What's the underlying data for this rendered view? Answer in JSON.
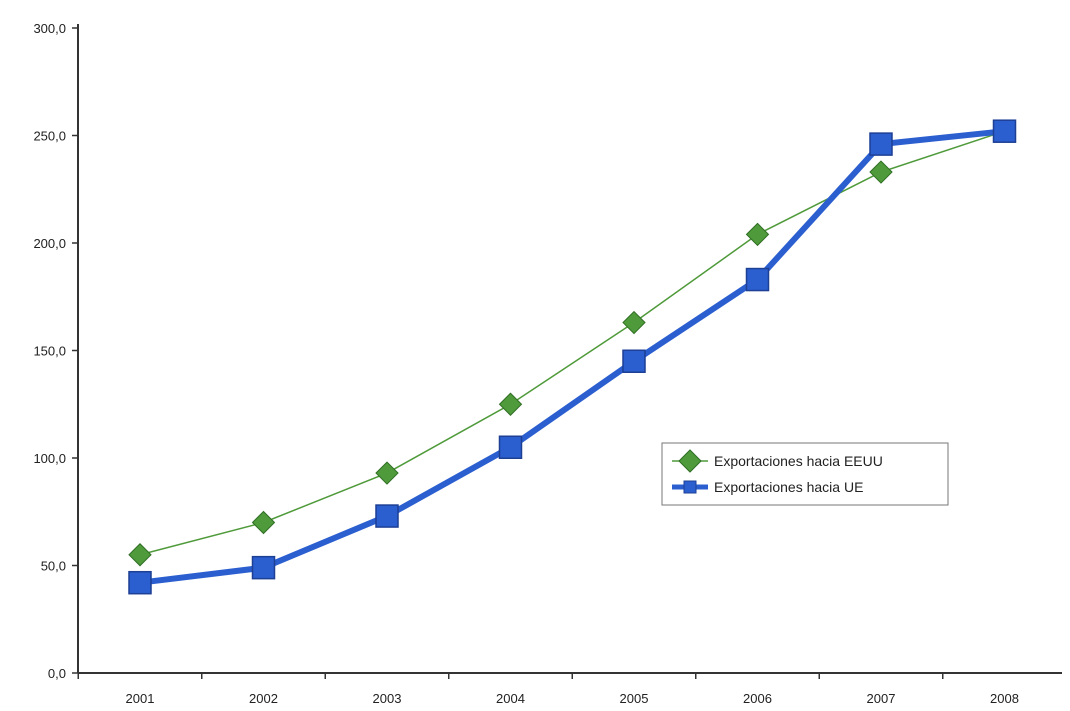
{
  "chart_data": {
    "type": "line",
    "title": "",
    "xlabel": "",
    "ylabel": "",
    "categories": [
      "2001",
      "2002",
      "2003",
      "2004",
      "2005",
      "2006",
      "2007",
      "2008"
    ],
    "ylim": [
      0,
      300
    ],
    "yticks": [
      0,
      50,
      100,
      150,
      200,
      250,
      300
    ],
    "ytick_labels": [
      "0,0",
      "50,0",
      "100,0",
      "150,0",
      "200,0",
      "250,0",
      "300,0"
    ],
    "grid": false,
    "legend_position": "right-middle",
    "series": [
      {
        "name": "Exportaciones hacia EEUU",
        "values": [
          55,
          70,
          93,
          125,
          163,
          204,
          233,
          252
        ],
        "color": "#4f9a3a",
        "marker": "diamond"
      },
      {
        "name": "Exportaciones hacia UE",
        "values": [
          42,
          49,
          73,
          105,
          145,
          183,
          246,
          252
        ],
        "color": "#2b5fd0",
        "marker": "square"
      }
    ]
  }
}
